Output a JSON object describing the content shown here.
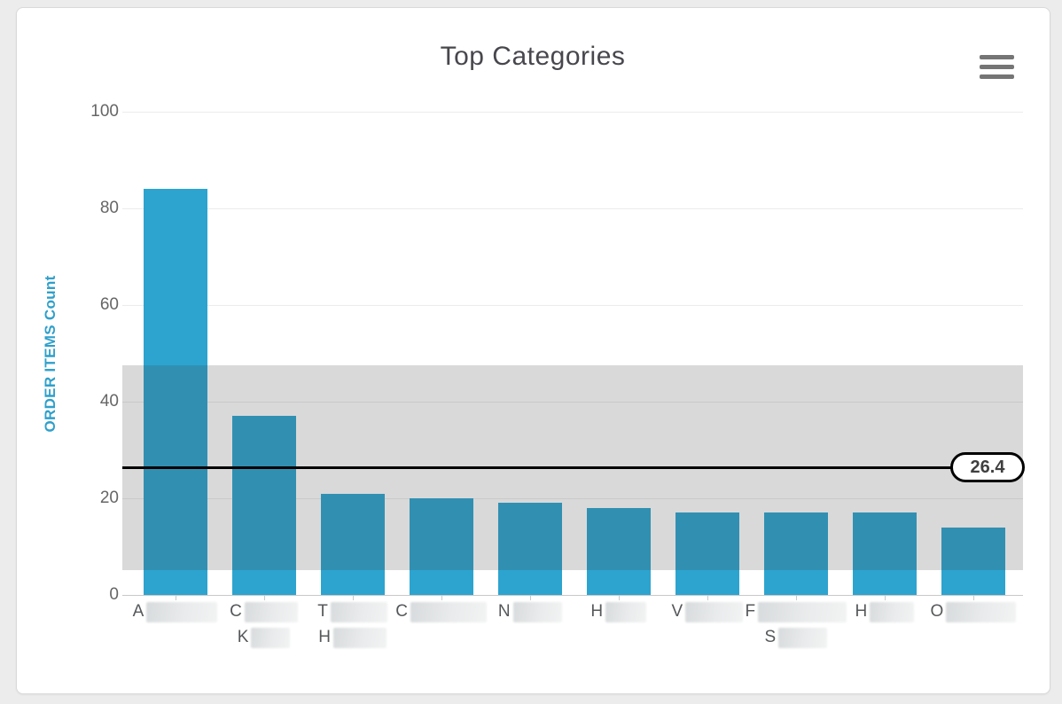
{
  "page": {
    "background": "#ECECEC"
  },
  "card": {
    "title": "Top Categories"
  },
  "menu": {
    "icon": "hamburger-menu-icon"
  },
  "chart_data": {
    "type": "bar",
    "title": "Top Categories",
    "ylabel": "ORDER ITEMS Count",
    "xlabel": "",
    "ylim": [
      0,
      100
    ],
    "yticks": [
      0,
      20,
      40,
      60,
      80,
      100
    ],
    "grid": true,
    "legend": false,
    "categories": [
      {
        "lines": [
          {
            "letter": "A",
            "redacted": true,
            "redact_width": 80
          }
        ]
      },
      {
        "lines": [
          {
            "letter": "C",
            "redacted": true,
            "redact_width": 60
          },
          {
            "letter": "K",
            "redacted": true,
            "redact_width": 44
          }
        ]
      },
      {
        "lines": [
          {
            "letter": "T",
            "redacted": true,
            "redact_width": 64
          },
          {
            "letter": "H",
            "redacted": true,
            "redact_width": 60
          }
        ]
      },
      {
        "lines": [
          {
            "letter": "C",
            "redacted": true,
            "redact_width": 86
          }
        ]
      },
      {
        "lines": [
          {
            "letter": "N",
            "redacted": true,
            "redact_width": 55
          }
        ]
      },
      {
        "lines": [
          {
            "letter": "H",
            "redacted": true,
            "redact_width": 46
          }
        ]
      },
      {
        "lines": [
          {
            "letter": "V",
            "redacted": true,
            "redact_width": 65
          }
        ]
      },
      {
        "lines": [
          {
            "letter": "F",
            "redacted": true,
            "redact_width": 100
          },
          {
            "letter": "S",
            "redacted": true,
            "redact_width": 55
          }
        ]
      },
      {
        "lines": [
          {
            "letter": "H",
            "redacted": true,
            "redact_width": 50
          }
        ]
      },
      {
        "lines": [
          {
            "letter": "O",
            "redacted": true,
            "redact_width": 79
          }
        ]
      }
    ],
    "values": [
      84,
      37,
      21,
      20,
      19,
      18,
      17,
      17,
      17,
      14
    ],
    "mean_line": {
      "value": 26.4,
      "label": "26.4"
    },
    "std_band": {
      "from": 5.2,
      "to": 47.6
    },
    "colors": {
      "bar": "#2DA4CF",
      "band_overlay": "rgba(64,64,64,0.2)",
      "mean_line": "#000000",
      "ylabel": "#2FA0CB",
      "gridline": "#ECECEC",
      "axis_line": "#C9C9C9"
    }
  }
}
